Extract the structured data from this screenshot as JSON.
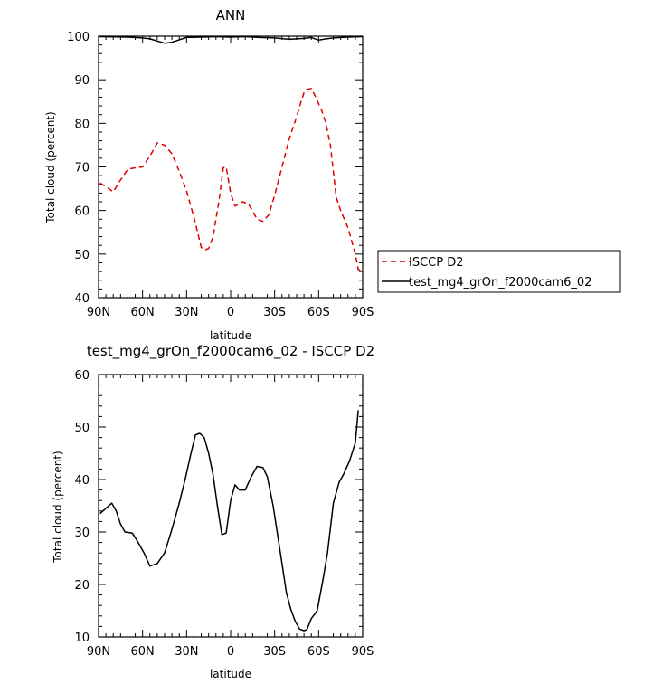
{
  "chart_data": [
    {
      "type": "line",
      "title": "ANN",
      "xlabel": "latitude",
      "ylabel": "Total cloud (percent)",
      "xlim": [
        90,
        -90
      ],
      "ylim": [
        40,
        100
      ],
      "xticks": [
        90,
        60,
        30,
        0,
        -30,
        -60,
        -90
      ],
      "xtick_labels": [
        "90N",
        "60N",
        "30N",
        "0",
        "30S",
        "60S",
        "90S"
      ],
      "yticks": [
        40,
        50,
        60,
        70,
        80,
        90,
        100
      ],
      "series": [
        {
          "name": "ISCCP D2",
          "color": "#e00000",
          "dash": "dashed",
          "x": [
            89,
            85,
            80,
            75,
            70,
            65,
            60,
            55,
            50,
            45,
            40,
            35,
            30,
            25,
            20,
            17,
            15,
            12,
            8,
            5,
            3,
            0,
            -3,
            -8,
            -12,
            -15,
            -18,
            -22,
            -26,
            -30,
            -35,
            -40,
            -45,
            -48,
            -50,
            -52,
            -55,
            -58,
            -62,
            -65,
            -68,
            -72,
            -75,
            -80,
            -85,
            -87,
            -90
          ],
          "y": [
            66.3,
            65.5,
            64.3,
            67,
            69.5,
            69.8,
            70,
            72.5,
            75.5,
            75,
            73,
            69,
            64.5,
            58.5,
            51.5,
            51,
            51.3,
            54,
            62,
            69.8,
            70,
            64,
            61,
            62,
            61.5,
            60,
            58,
            57.5,
            59,
            63.5,
            70,
            76.5,
            81.5,
            85,
            87,
            87.8,
            88,
            86,
            83,
            80,
            75,
            63,
            60,
            56,
            50,
            46.5,
            46
          ]
        },
        {
          "name": "test_mg4_grOn_f2000cam6_02",
          "color": "#000000",
          "dash": "solid",
          "x": [
            90,
            70,
            60,
            55,
            50,
            45,
            40,
            35,
            30,
            20,
            10,
            0,
            -10,
            -20,
            -30,
            -40,
            -50,
            -55,
            -60,
            -65,
            -70,
            -80,
            -90
          ],
          "y": [
            99.9,
            99.8,
            99.6,
            99.4,
            98.9,
            98.4,
            98.6,
            99.2,
            99.7,
            99.8,
            99.9,
            99.8,
            99.9,
            99.7,
            99.6,
            99.3,
            99.5,
            99.7,
            99.1,
            99.4,
            99.6,
            99.8,
            99.9
          ]
        }
      ],
      "legend": "right"
    },
    {
      "type": "line",
      "title": "test_mg4_grOn_f2000cam6_02 - ISCCP D2",
      "xlabel": "latitude",
      "ylabel": "Total cloud (percent)",
      "xlim": [
        90,
        -90
      ],
      "ylim": [
        10,
        60
      ],
      "xticks": [
        90,
        60,
        30,
        0,
        -30,
        -60,
        -90
      ],
      "xtick_labels": [
        "90N",
        "60N",
        "30N",
        "0",
        "30S",
        "60S",
        "90S"
      ],
      "yticks": [
        10,
        20,
        30,
        40,
        50,
        60
      ],
      "series": [
        {
          "color": "#000000",
          "dash": "solid",
          "x": [
            89,
            85,
            81,
            78,
            75,
            72,
            67,
            63,
            59,
            55,
            50,
            45,
            40,
            35,
            31,
            27,
            24,
            21,
            18,
            15,
            12,
            9,
            6,
            3,
            0,
            -3,
            -6,
            -10,
            -14,
            -18,
            -22,
            -25,
            -29,
            -32,
            -35,
            -38,
            -41,
            -44,
            -47,
            -50,
            -52,
            -55,
            -59,
            -63,
            -66,
            -70,
            -74,
            -77,
            -81,
            -85,
            -87
          ],
          "y": [
            33.5,
            34.5,
            35.5,
            34,
            31.5,
            30,
            29.8,
            28,
            26,
            23.5,
            24,
            26,
            30.5,
            35.5,
            40,
            45,
            48.5,
            48.8,
            48,
            45,
            41,
            35,
            29.5,
            29.8,
            36,
            39,
            38,
            38,
            40.5,
            42.5,
            42.3,
            40.5,
            35,
            29.5,
            24,
            18.5,
            15.3,
            13,
            11.5,
            11.2,
            11.4,
            13.5,
            15,
            21,
            26,
            35.5,
            39.5,
            41,
            43.5,
            47,
            53.2
          ]
        }
      ]
    }
  ]
}
